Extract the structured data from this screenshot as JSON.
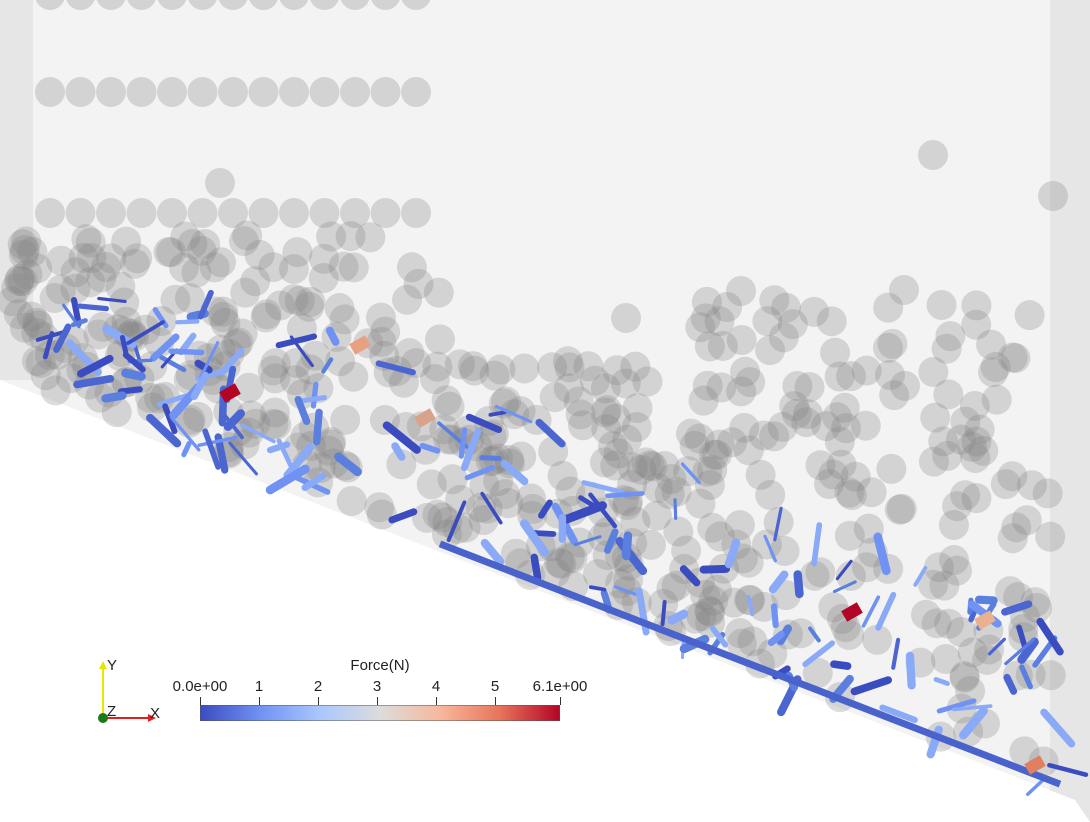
{
  "scene": {
    "description_colors": {
      "background": "#f3f3f3",
      "wall": "#e6e6e6",
      "ramp": "#ffffff",
      "particle": "rgba(140,140,140,0.35)",
      "low_force": "#3b4cc0",
      "high_force": "#b40426"
    }
  },
  "colorbar": {
    "title": "Force(N)",
    "ticks": [
      "0.0e+00",
      "1",
      "2",
      "3",
      "4",
      "5",
      "6.1e+00"
    ],
    "tick_values": [
      0,
      1,
      2,
      3,
      4,
      5,
      6.1
    ],
    "min": 0,
    "max": 6.1,
    "colormap": [
      "#3b4cc0",
      "#6f92f3",
      "#aac7fd",
      "#dddcdc",
      "#f7b89c",
      "#e7745b",
      "#b40426"
    ]
  },
  "axes": {
    "y_label": "Y",
    "z_label": "Z",
    "x_label": "X",
    "y_color": "#e6e600",
    "x_color": "#e02020",
    "z_color": "#1a7a1a"
  }
}
